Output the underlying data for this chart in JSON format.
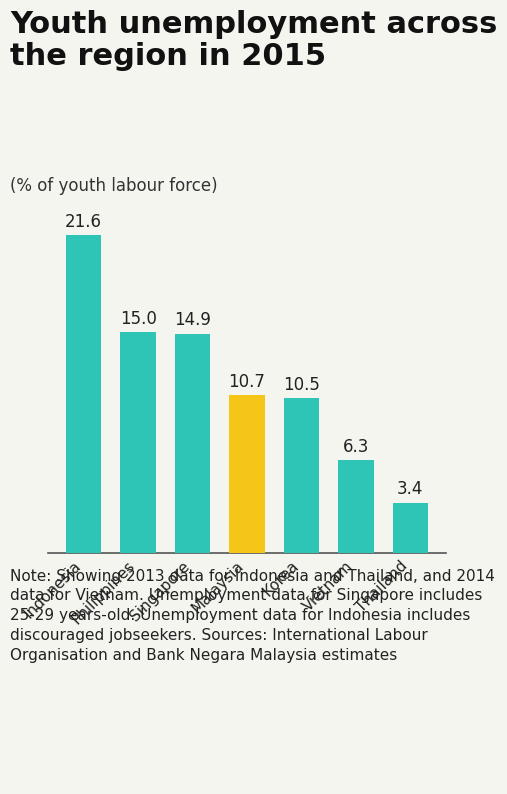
{
  "title": "Youth unemployment across\nthe region in 2015",
  "subtitle": "(% of youth labour force)",
  "categories": [
    "Indonesia",
    "Philippines",
    "Singapore",
    "Malaysia",
    "Korea",
    "Vietnam",
    "Thailand"
  ],
  "values": [
    21.6,
    15.0,
    14.9,
    10.7,
    10.5,
    6.3,
    3.4
  ],
  "bar_colors": [
    "#2ec4b6",
    "#2ec4b6",
    "#2ec4b6",
    "#f5c518",
    "#2ec4b6",
    "#2ec4b6",
    "#2ec4b6"
  ],
  "teal_color": "#2ec4b6",
  "yellow_color": "#f5c518",
  "note_text": "Note: Showing 2013 data for Indonesia and Thailand, and 2014 data for Vietnam. Unemployment data for Singapore includes 25-29 years-old. Unemployment data for Indonesia includes discouraged jobseekers. Sources: International Labour Organisation and Bank Negara Malaysia estimates",
  "background_color": "#f5f5f0",
  "title_fontsize": 22,
  "subtitle_fontsize": 12,
  "label_fontsize": 12,
  "note_fontsize": 11,
  "tick_fontsize": 11,
  "ylim": [
    0,
    25
  ]
}
